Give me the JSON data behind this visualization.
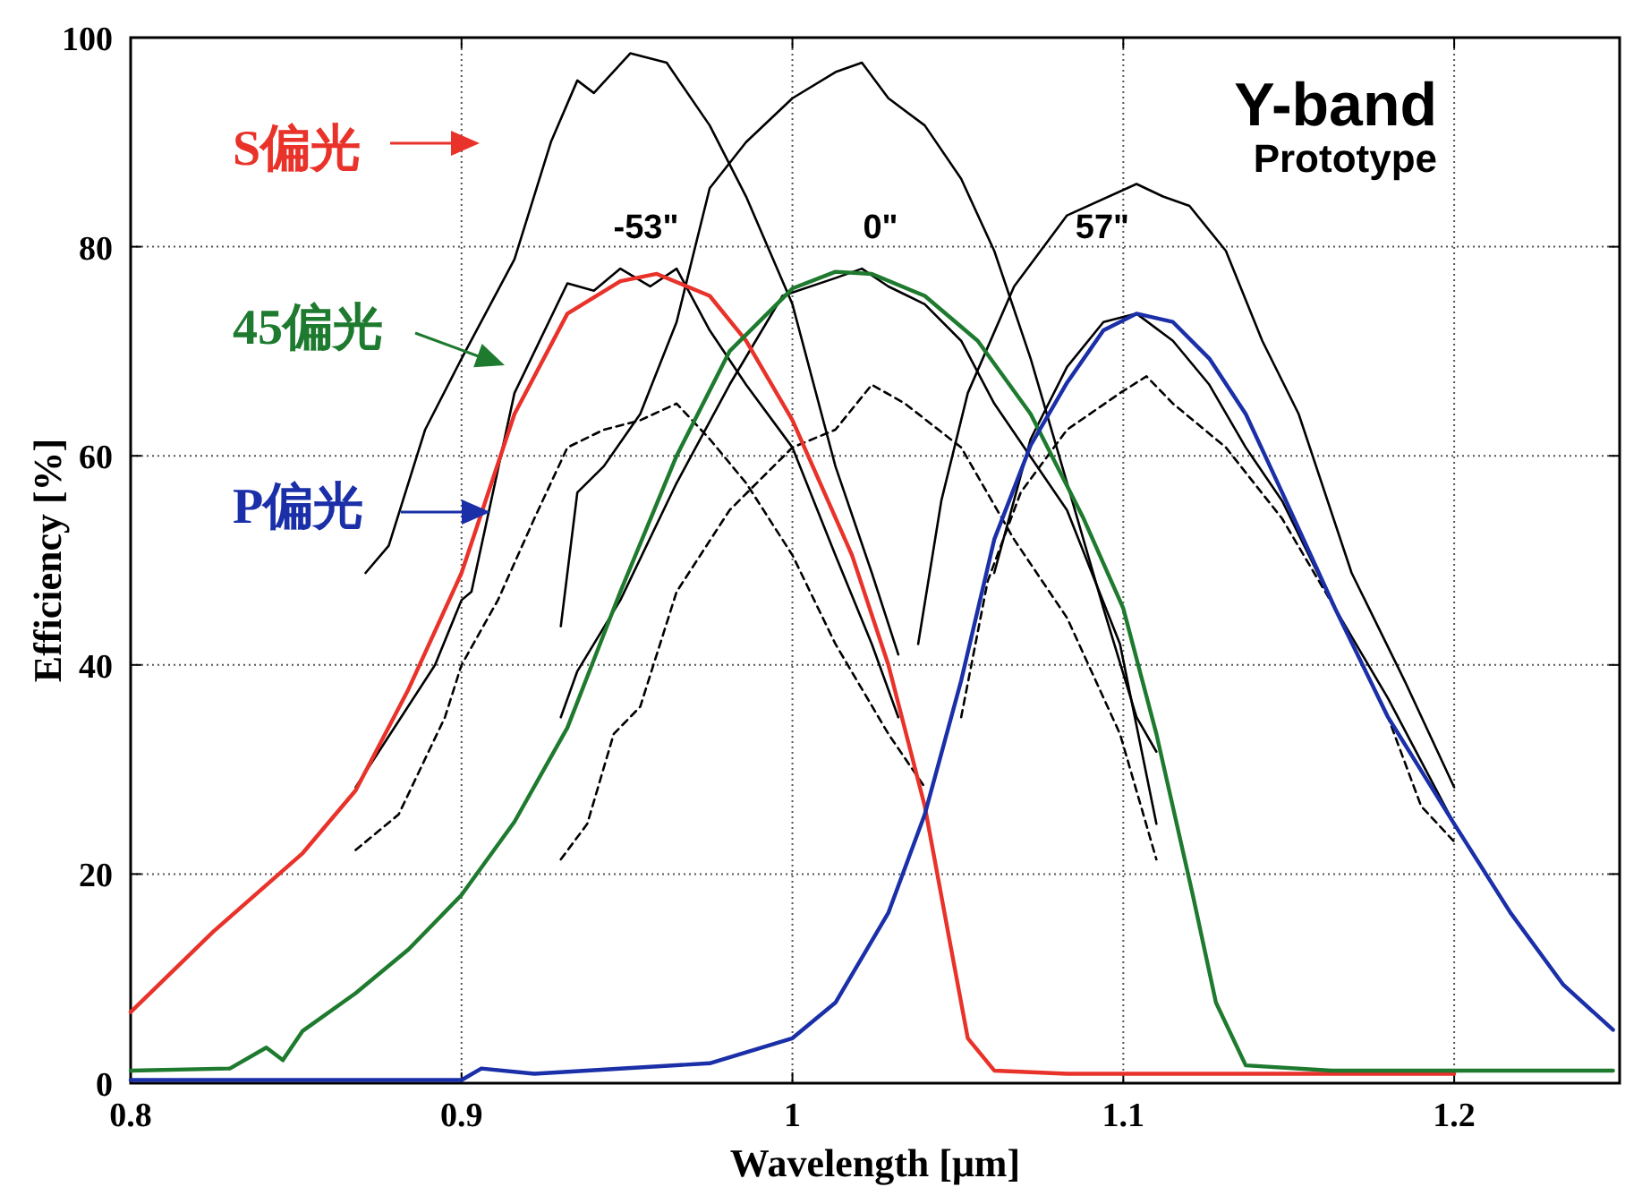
{
  "chart_data": {
    "type": "line",
    "xlabel": "Wavelength [μm]",
    "ylabel": "Efficiency [%]",
    "xlim": [
      0.8,
      1.25
    ],
    "ylim": [
      0,
      100
    ],
    "xticks": [
      0.8,
      0.9,
      {
        "value": 1.0,
        "label": "1"
      },
      1.1,
      1.2
    ],
    "yticks": [
      0,
      20,
      40,
      60,
      80,
      100
    ],
    "grid": true,
    "legend": "top left",
    "annotations": [
      "Y-band",
      "Prototype",
      "-53\"",
      "0\"",
      "57\""
    ],
    "series": [
      {
        "name": "S偏光",
        "color": "#e8322a",
        "x": [
          0.8,
          0.825,
          0.852,
          0.868,
          0.884,
          0.9,
          0.916,
          0.932,
          0.948,
          0.959,
          0.975,
          0.986,
          1.0,
          1.018,
          1.029,
          1.04,
          1.048,
          1.053,
          1.061,
          1.083,
          1.136,
          1.2
        ],
        "values": [
          6.8,
          14.5,
          22,
          28,
          37.7,
          48.8,
          64,
          73.6,
          76.7,
          77.4,
          75.3,
          71,
          63.4,
          50.5,
          40,
          26.5,
          12.8,
          4.3,
          1.2,
          0.9,
          0.9,
          0.9
        ]
      },
      {
        "name": "45偏光",
        "color": "#1e7a2e",
        "x": [
          0.8,
          0.83,
          0.841,
          0.846,
          0.852,
          0.868,
          0.884,
          0.9,
          0.916,
          0.932,
          0.948,
          0.965,
          0.981,
          1.0,
          1.013,
          1.024,
          1.04,
          1.056,
          1.072,
          1.088,
          1.1,
          1.11,
          1.121,
          1.128,
          1.137,
          1.163,
          1.248
        ],
        "values": [
          1.2,
          1.4,
          3.4,
          2.2,
          5,
          8.6,
          12.8,
          18,
          25,
          34,
          47,
          60,
          70,
          76,
          77.6,
          77.4,
          75.3,
          71,
          64,
          54,
          45.4,
          33.4,
          18,
          7.7,
          1.7,
          1.2,
          1.2
        ]
      },
      {
        "name": "P偏光",
        "color": "#1a2fa8",
        "x": [
          0.8,
          0.9,
          0.906,
          0.922,
          0.975,
          1.0,
          1.013,
          1.029,
          1.04,
          1.051,
          1.061,
          1.072,
          1.083,
          1.094,
          1.104,
          1.115,
          1.126,
          1.137,
          1.148,
          1.164,
          1.18,
          1.2,
          1.217,
          1.233,
          1.248
        ],
        "values": [
          0.3,
          0.3,
          1.4,
          0.9,
          1.9,
          4.3,
          7.7,
          16.3,
          25.7,
          38.5,
          52,
          61,
          67,
          72,
          73.6,
          72.8,
          69.3,
          64,
          56.5,
          45.4,
          35,
          24.8,
          16.3,
          9.4,
          5.1
        ]
      },
      {
        "color": "#000000",
        "line_style": "solid",
        "x": [
          0.871,
          0.878,
          0.889,
          0.9,
          0.916,
          0.927,
          0.935,
          0.94,
          0.951,
          0.962,
          0.975,
          0.986,
          1.0,
          1.013,
          1.024,
          1.032
        ],
        "values": [
          48.8,
          51.4,
          62.5,
          69.3,
          78.8,
          90,
          95.9,
          94.7,
          98.5,
          97.6,
          91.6,
          84.8,
          74.5,
          59,
          48.8,
          41
        ]
      },
      {
        "color": "#000000",
        "line_style": "solid",
        "x": [
          0.93,
          0.935,
          0.943,
          0.954,
          0.965,
          0.975,
          0.986,
          1.0,
          1.013,
          1.021,
          1.029,
          1.04,
          1.051,
          1.061,
          1.072,
          1.083,
          1.094,
          1.104,
          1.11
        ],
        "values": [
          43.7,
          56.5,
          59,
          64,
          72.8,
          85.6,
          90,
          94.2,
          96.7,
          97.6,
          94.2,
          91.6,
          86.5,
          79.6,
          69.3,
          57.4,
          45.4,
          35,
          31.7
        ]
      },
      {
        "color": "#000000",
        "line_style": "solid",
        "x": [
          1.038,
          1.045,
          1.053,
          1.067,
          1.083,
          1.104,
          1.112,
          1.12,
          1.131,
          1.142,
          1.153,
          1.169,
          1.185,
          1.2
        ],
        "values": [
          42,
          55.7,
          66,
          76.2,
          83,
          86,
          84.8,
          83.9,
          79.6,
          71,
          64,
          48.8,
          38.5,
          28.3
        ]
      },
      {
        "color": "#000000",
        "line_style": "solid",
        "x": [
          0.868,
          0.892,
          0.9,
          0.903,
          0.916,
          0.932,
          0.94,
          0.948,
          0.957,
          0.965,
          0.975,
          0.986,
          1.0,
          1.013,
          1.024,
          1.032
        ],
        "values": [
          28.3,
          40,
          46.2,
          47,
          66,
          76.5,
          75.8,
          77.9,
          76.2,
          77.9,
          72,
          66.8,
          60.8,
          50.5,
          42,
          35
        ]
      },
      {
        "color": "#000000",
        "line_style": "solid",
        "x": [
          0.93,
          0.935,
          0.948,
          0.965,
          0.981,
          0.997,
          1.013,
          1.021,
          1.029,
          1.04,
          1.051,
          1.061,
          1.083,
          1.099,
          1.11
        ],
        "values": [
          35,
          39.4,
          46.2,
          57.4,
          66.8,
          75.3,
          77,
          77.9,
          76.2,
          74.5,
          71,
          65,
          54.8,
          42,
          24.8
        ]
      },
      {
        "color": "#000000",
        "line_style": "solid",
        "x": [
          1.061,
          1.072,
          1.083,
          1.094,
          1.104,
          1.115,
          1.126,
          1.137,
          1.148,
          1.164,
          1.18,
          1.2
        ],
        "values": [
          48.8,
          61.6,
          68.5,
          72.8,
          73.6,
          71,
          66.8,
          60.8,
          55.7,
          45.4,
          36.8,
          24.8
        ]
      },
      {
        "color": "#000000",
        "line_style": "dashed",
        "x": [
          0.868,
          0.881,
          0.895,
          0.9,
          0.911,
          0.922,
          0.932,
          0.943,
          0.954,
          0.965,
          0.975,
          0.986,
          1.0,
          1.013,
          1.029,
          1.04
        ],
        "values": [
          22.3,
          25.7,
          35,
          40,
          46.2,
          54,
          60.8,
          62.5,
          63.4,
          65,
          61.6,
          57.4,
          50.5,
          42,
          33.4,
          28.3
        ]
      },
      {
        "color": "#000000",
        "line_style": "dashed",
        "x": [
          0.93,
          0.938,
          0.946,
          0.954,
          0.965,
          0.981,
          1.0,
          1.013,
          1.024,
          1.034,
          1.051,
          1.067,
          1.083,
          1.099,
          1.11
        ],
        "values": [
          21.4,
          24.8,
          33.4,
          36,
          47,
          54.8,
          60.8,
          62.5,
          66.8,
          65,
          60.8,
          52,
          44.5,
          33.4,
          21.4
        ]
      },
      {
        "color": "#000000",
        "line_style": "dashed",
        "x": [
          1.051,
          1.059,
          1.069,
          1.083,
          1.099,
          1.107,
          1.115,
          1.131,
          1.148,
          1.164,
          1.18,
          1.19,
          1.2
        ],
        "values": [
          35,
          48,
          56.5,
          62.5,
          66,
          67.6,
          65,
          60.8,
          54,
          45.4,
          35,
          26.5,
          23.1
        ]
      }
    ]
  }
}
